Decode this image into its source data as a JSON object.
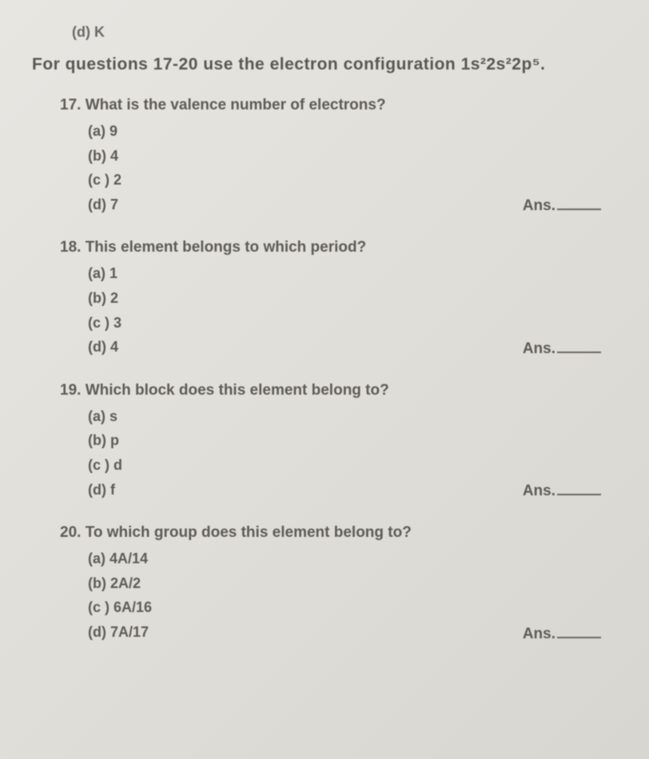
{
  "fragment_top": "(d) K",
  "instruction": "For questions 17-20 use the electron configuration 1s²2s²2p⁵.",
  "questions": [
    {
      "number": "17",
      "text": "17. What is the valence number of electrons?",
      "options": {
        "a": "(a) 9",
        "b": "(b) 4",
        "c": "(c ) 2",
        "d": "(d) 7"
      },
      "answer_label": "Ans."
    },
    {
      "number": "18",
      "text": "18. This element belongs to which period?",
      "options": {
        "a": "(a) 1",
        "b": "(b) 2",
        "c": "(c ) 3",
        "d": "(d) 4"
      },
      "answer_label": "Ans."
    },
    {
      "number": "19",
      "text": "19. Which block does this element belong to?",
      "options": {
        "a": "(a) s",
        "b": "(b) p",
        "c": "(c ) d",
        "d": "(d) f"
      },
      "answer_label": "Ans."
    },
    {
      "number": "20",
      "text": "20. To which group does this element belong to?",
      "options": {
        "a": "(a) 4A/14",
        "b": "(b) 2A/2",
        "c": "(c ) 6A/16",
        "d": "(d) 7A/17"
      },
      "answer_label": "Ans."
    }
  ],
  "styling": {
    "background_gradient_start": "#e8e6e1",
    "background_gradient_end": "#d8d6d0",
    "text_color": "#5a5853",
    "font_family": "Arial",
    "instruction_fontsize": 21,
    "question_fontsize": 19,
    "option_fontsize": 18,
    "blur_amount": 0.6
  }
}
